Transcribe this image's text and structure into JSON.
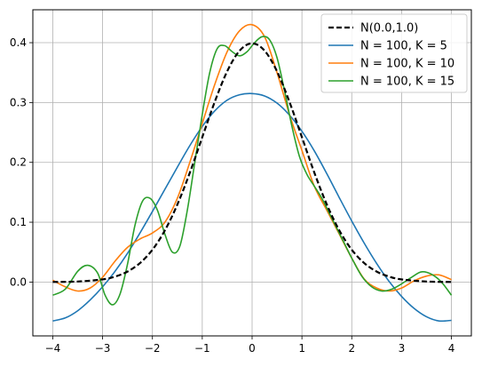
{
  "chart_data": {
    "type": "line",
    "title": "",
    "xlabel": "",
    "ylabel": "",
    "xlim": [
      -4.4,
      4.4
    ],
    "ylim": [
      -0.09,
      0.455
    ],
    "x_ticks": [
      -4,
      -3,
      -2,
      -1,
      0,
      1,
      2,
      3,
      4
    ],
    "x_tick_labels": [
      "−4",
      "−3",
      "−2",
      "−1",
      "0",
      "1",
      "2",
      "3",
      "4"
    ],
    "y_ticks": [
      0.0,
      0.1,
      0.2,
      0.3,
      0.4
    ],
    "y_tick_labels": [
      "0.0",
      "0.1",
      "0.2",
      "0.3",
      "0.4"
    ],
    "grid": true,
    "legend_position": "top-right",
    "series": [
      {
        "name": "N(0.0,1.0)",
        "color": "#000000",
        "dashed": true,
        "x": [
          -4,
          -3.5,
          -3,
          -2.75,
          -2.5,
          -2.25,
          -2,
          -1.75,
          -1.5,
          -1.25,
          -1,
          -0.75,
          -0.5,
          -0.25,
          0,
          0.25,
          0.5,
          0.75,
          1,
          1.25,
          1.5,
          1.75,
          2,
          2.25,
          2.5,
          2.75,
          3,
          3.5,
          4
        ],
        "y": [
          0.0001,
          0.0009,
          0.0044,
          0.0091,
          0.0175,
          0.0317,
          0.054,
          0.0863,
          0.1295,
          0.1826,
          0.242,
          0.3011,
          0.3521,
          0.3867,
          0.3989,
          0.3867,
          0.3521,
          0.3011,
          0.242,
          0.1826,
          0.1295,
          0.0863,
          0.054,
          0.0317,
          0.0175,
          0.0091,
          0.0044,
          0.0009,
          0.0001
        ]
      },
      {
        "name": "N = 100, K = 5",
        "color": "#1f77b4",
        "dashed": false,
        "x": [
          -4,
          -3.75,
          -3.5,
          -3.25,
          -3,
          -2.75,
          -2.5,
          -2.25,
          -2,
          -1.75,
          -1.5,
          -1.25,
          -1,
          -0.75,
          -0.5,
          -0.25,
          0,
          0.25,
          0.5,
          0.75,
          1,
          1.25,
          1.5,
          1.75,
          2,
          2.25,
          2.5,
          2.75,
          3,
          3.25,
          3.5,
          3.75,
          4
        ],
        "y": [
          -0.065,
          -0.06,
          -0.048,
          -0.03,
          -0.008,
          0.018,
          0.048,
          0.082,
          0.118,
          0.155,
          0.192,
          0.228,
          0.26,
          0.286,
          0.304,
          0.313,
          0.315,
          0.311,
          0.299,
          0.279,
          0.252,
          0.219,
          0.181,
          0.141,
          0.102,
          0.065,
          0.031,
          0.001,
          -0.024,
          -0.044,
          -0.058,
          -0.065,
          -0.064
        ]
      },
      {
        "name": "N = 100, K = 10",
        "color": "#ff7f0e",
        "dashed": false,
        "x": [
          -4,
          -3.75,
          -3.5,
          -3.25,
          -3,
          -2.75,
          -2.5,
          -2.25,
          -2,
          -1.75,
          -1.5,
          -1.25,
          -1,
          -0.75,
          -0.5,
          -0.25,
          0,
          0.25,
          0.5,
          0.75,
          1,
          1.25,
          1.5,
          1.75,
          2,
          2.25,
          2.5,
          2.75,
          3,
          3.25,
          3.5,
          3.75,
          4
        ],
        "y": [
          0.003,
          -0.008,
          -0.015,
          -0.01,
          0.008,
          0.035,
          0.058,
          0.072,
          0.082,
          0.1,
          0.14,
          0.2,
          0.265,
          0.33,
          0.385,
          0.42,
          0.43,
          0.41,
          0.35,
          0.28,
          0.22,
          0.16,
          0.12,
          0.08,
          0.04,
          0.005,
          -0.01,
          -0.015,
          -0.01,
          0.002,
          0.01,
          0.012,
          0.004
        ]
      },
      {
        "name": "N = 100, K = 15",
        "color": "#2ca02c",
        "dashed": false,
        "x": [
          -4,
          -3.75,
          -3.5,
          -3.3,
          -3.1,
          -2.95,
          -2.8,
          -2.65,
          -2.5,
          -2.35,
          -2.2,
          -2.05,
          -1.9,
          -1.75,
          -1.6,
          -1.45,
          -1.3,
          -1.15,
          -1,
          -0.85,
          -0.7,
          -0.55,
          -0.4,
          -0.25,
          -0.1,
          0.05,
          0.2,
          0.35,
          0.5,
          0.65,
          0.8,
          0.95,
          1.1,
          1.25,
          1.4,
          1.55,
          1.7,
          1.85,
          2,
          2.2,
          2.4,
          2.6,
          2.8,
          3,
          3.2,
          3.4,
          3.6,
          3.8,
          4
        ],
        "y": [
          -0.022,
          -0.012,
          0.018,
          0.028,
          0.015,
          -0.022,
          -0.038,
          -0.02,
          0.03,
          0.095,
          0.135,
          0.14,
          0.12,
          0.08,
          0.05,
          0.06,
          0.12,
          0.2,
          0.28,
          0.35,
          0.39,
          0.395,
          0.385,
          0.378,
          0.385,
          0.4,
          0.41,
          0.405,
          0.375,
          0.32,
          0.26,
          0.21,
          0.18,
          0.16,
          0.14,
          0.115,
          0.09,
          0.065,
          0.04,
          0.01,
          -0.008,
          -0.015,
          -0.012,
          -0.003,
          0.008,
          0.017,
          0.013,
          0,
          -0.022
        ]
      }
    ]
  }
}
